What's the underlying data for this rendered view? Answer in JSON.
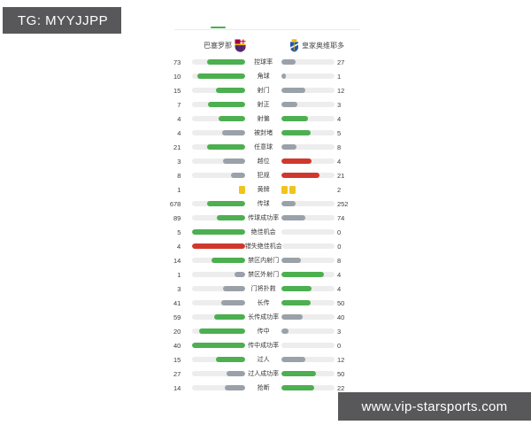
{
  "tg_badge": {
    "label": "TG: MYYJJPP"
  },
  "site_banner": {
    "label": "www.vip-starsports.com"
  },
  "match_header": {
    "home_team": "巴塞罗那",
    "away_team": "皇家奥维耶多"
  },
  "colors": {
    "green": "#4caf50",
    "gray": "#9aa1a9",
    "red": "#d0382d",
    "yellow": "#f0c41d",
    "track": "#ededed",
    "accent": "#4caf50"
  },
  "stats": {
    "rows": [
      {
        "label": "控球率",
        "home": "73",
        "away": "27",
        "home_color": "green",
        "away_color": "gray"
      },
      {
        "label": "角球",
        "home": "10",
        "away": "1",
        "home_color": "green",
        "away_color": "gray"
      },
      {
        "label": "射门",
        "home": "15",
        "away": "12",
        "home_color": "green",
        "away_color": "gray"
      },
      {
        "label": "射正",
        "home": "7",
        "away": "3",
        "home_color": "green",
        "away_color": "gray"
      },
      {
        "label": "射偏",
        "home": "4",
        "away": "4",
        "home_color": "green",
        "away_color": "green"
      },
      {
        "label": "被封堵",
        "home": "4",
        "away": "5",
        "home_color": "gray",
        "away_color": "green"
      },
      {
        "label": "任意球",
        "home": "21",
        "away": "8",
        "home_color": "green",
        "away_color": "gray"
      },
      {
        "label": "越位",
        "home": "3",
        "away": "4",
        "home_color": "gray",
        "away_color": "red"
      },
      {
        "label": "犯规",
        "home": "8",
        "away": "21",
        "home_color": "gray",
        "away_color": "red"
      },
      {
        "label": "黄牌",
        "home": "1",
        "away": "2",
        "type": "cards"
      },
      {
        "label": "传球",
        "home": "678",
        "away": "252",
        "home_color": "green",
        "away_color": "gray"
      },
      {
        "label": "传球成功率",
        "home": "89",
        "away": "74",
        "home_color": "green",
        "away_color": "gray"
      },
      {
        "label": "绝佳机会",
        "home": "5",
        "away": "0",
        "home_color": "green",
        "away_color": "gray"
      },
      {
        "label": "错失绝佳机会",
        "home": "4",
        "away": "0",
        "home_color": "red",
        "away_color": "gray"
      },
      {
        "label": "禁区内射门",
        "home": "14",
        "away": "8",
        "home_color": "green",
        "away_color": "gray"
      },
      {
        "label": "禁区外射门",
        "home": "1",
        "away": "4",
        "home_color": "gray",
        "away_color": "green"
      },
      {
        "label": "门将扑救",
        "home": "3",
        "away": "4",
        "home_color": "gray",
        "away_color": "green"
      },
      {
        "label": "长传",
        "home": "41",
        "away": "50",
        "home_color": "gray",
        "away_color": "green"
      },
      {
        "label": "长传成功率",
        "home": "59",
        "away": "40",
        "home_color": "green",
        "away_color": "gray"
      },
      {
        "label": "传中",
        "home": "20",
        "away": "3",
        "home_color": "green",
        "away_color": "gray"
      },
      {
        "label": "传中成功率",
        "home": "40",
        "away": "0",
        "home_color": "green",
        "away_color": "gray"
      },
      {
        "label": "过人",
        "home": "15",
        "away": "12",
        "home_color": "green",
        "away_color": "gray"
      },
      {
        "label": "过人成功率",
        "home": "27",
        "away": "50",
        "home_color": "gray",
        "away_color": "green"
      },
      {
        "label": "抢断",
        "home": "14",
        "away": "22",
        "home_color": "gray",
        "away_color": "green"
      }
    ]
  }
}
